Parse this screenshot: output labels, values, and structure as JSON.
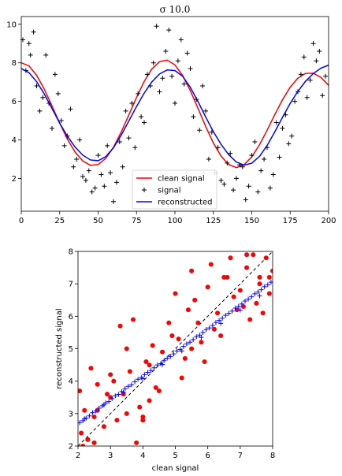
{
  "colors": {
    "clean": "#ff0000",
    "signal": "#000000",
    "reconstructed": "#0000ff",
    "scatter_clean_vs_signal": "#ff0000",
    "scatter_clean_vs_reconstructed": "#0000ff",
    "identity_line": "#000000"
  },
  "chart_data": [
    {
      "type": "line",
      "title": "σ  10.0",
      "xlabel": "",
      "ylabel": "",
      "xlim": [
        0,
        200
      ],
      "ylim": [
        0.3,
        10.4
      ],
      "xticks": [
        0,
        25,
        50,
        75,
        100,
        125,
        150,
        175,
        200
      ],
      "yticks": [
        2,
        4,
        6,
        8,
        10
      ],
      "grid": false,
      "legend_position": "lower-center",
      "series": [
        {
          "name": "clean signal",
          "kind": "line",
          "color": "#ff0000",
          "x": [
            0,
            5,
            10,
            15,
            20,
            25,
            30,
            35,
            40,
            45,
            50,
            55,
            60,
            65,
            70,
            75,
            80,
            85,
            90,
            95,
            100,
            105,
            110,
            115,
            120,
            125,
            130,
            135,
            140,
            145,
            150,
            155,
            160,
            165,
            170,
            175,
            180,
            185,
            190,
            195,
            200
          ],
          "y": [
            8.0,
            7.84,
            7.35,
            6.63,
            5.76,
            4.87,
            4.04,
            3.37,
            2.91,
            2.68,
            2.72,
            3.04,
            3.62,
            4.4,
            5.29,
            6.2,
            7.03,
            7.68,
            8.06,
            8.14,
            7.89,
            7.34,
            6.56,
            5.64,
            4.7,
            3.84,
            3.16,
            2.72,
            2.56,
            2.71,
            3.12,
            3.74,
            4.5,
            5.31,
            6.08,
            6.73,
            7.2,
            7.45,
            7.46,
            7.24,
            6.83
          ]
        },
        {
          "name": "signal",
          "kind": "scatter",
          "color": "#000000",
          "x": [
            1,
            3,
            5,
            6,
            8,
            10,
            12,
            14,
            16,
            18,
            20,
            22,
            24,
            26,
            28,
            30,
            32,
            34,
            36,
            38,
            40,
            42,
            44,
            46,
            48,
            50,
            52,
            54,
            56,
            58,
            60,
            62,
            64,
            66,
            68,
            70,
            72,
            74,
            76,
            78,
            80,
            82,
            84,
            86,
            88,
            90,
            92,
            94,
            96,
            98,
            100,
            102,
            104,
            106,
            108,
            110,
            112,
            114,
            116,
            118,
            120,
            122,
            124,
            126,
            128,
            130,
            132,
            134,
            136,
            138,
            140,
            142,
            144,
            146,
            148,
            150,
            152,
            154,
            156,
            158,
            160,
            162,
            164,
            166,
            168,
            170,
            172,
            174,
            176,
            178,
            180,
            182,
            184,
            186,
            188,
            190,
            192,
            194,
            196,
            198
          ],
          "y": [
            9.2,
            7.6,
            9.0,
            8.4,
            9.6,
            6.8,
            5.5,
            6.2,
            8.4,
            5.9,
            4.6,
            7.4,
            6.4,
            5.0,
            3.7,
            4.2,
            5.6,
            2.6,
            3.0,
            4.0,
            2.1,
            1.9,
            2.4,
            1.3,
            1.5,
            3.2,
            2.2,
            1.6,
            3.7,
            2.3,
            0.8,
            1.8,
            3.9,
            2.6,
            5.5,
            4.1,
            5.9,
            3.6,
            6.4,
            5.2,
            4.9,
            7.4,
            6.8,
            8.0,
            9.9,
            6.5,
            7.2,
            8.6,
            9.7,
            7.3,
            5.9,
            8.1,
            9.2,
            6.9,
            8.5,
            7.7,
            5.2,
            6.1,
            4.5,
            6.8,
            5.5,
            3.0,
            4.4,
            2.3,
            3.6,
            1.9,
            1.7,
            2.8,
            3.3,
            1.4,
            2.0,
            2.7,
            2.6,
            0.9,
            1.6,
            3.2,
            3.9,
            1.3,
            2.4,
            3.0,
            3.6,
            1.5,
            2.2,
            4.9,
            3.1,
            4.6,
            5.3,
            3.8,
            4.2,
            6.0,
            6.5,
            7.4,
            8.3,
            6.2,
            7.1,
            9.0,
            8.1,
            8.6,
            6.3,
            7.3
          ]
        },
        {
          "name": "reconstructed",
          "kind": "line",
          "color": "#0000ff",
          "x": [
            0,
            5,
            10,
            15,
            20,
            25,
            30,
            35,
            40,
            45,
            50,
            55,
            60,
            65,
            70,
            75,
            80,
            85,
            90,
            95,
            100,
            105,
            110,
            115,
            120,
            125,
            130,
            135,
            140,
            145,
            150,
            155,
            160,
            165,
            170,
            175,
            180,
            185,
            190,
            195,
            200
          ],
          "y": [
            7.7,
            7.49,
            7.02,
            6.38,
            5.63,
            4.87,
            4.19,
            3.63,
            3.21,
            2.96,
            2.92,
            3.13,
            3.59,
            4.24,
            4.98,
            5.73,
            6.43,
            7.01,
            7.42,
            7.63,
            7.6,
            7.3,
            6.73,
            5.99,
            5.19,
            4.43,
            3.77,
            3.23,
            2.85,
            2.69,
            2.79,
            3.14,
            3.71,
            4.42,
            5.17,
            5.89,
            6.52,
            7.04,
            7.44,
            7.72,
            7.88
          ]
        }
      ]
    },
    {
      "type": "scatter",
      "title": "",
      "xlabel": "clean signal",
      "ylabel": "reconstructed signal",
      "xlim": [
        2,
        8
      ],
      "ylim": [
        2,
        8
      ],
      "xticks": [
        2,
        3,
        4,
        5,
        6,
        7,
        8
      ],
      "yticks": [
        2,
        3,
        4,
        5,
        6,
        7,
        8
      ],
      "grid": false,
      "series": [
        {
          "kind": "scatter-dot",
          "color": "#ff0000",
          "x": [
            2.05,
            2.1,
            2.2,
            2.3,
            2.4,
            2.5,
            2.6,
            2.8,
            3.0,
            3.1,
            3.2,
            3.3,
            3.4,
            3.5,
            3.6,
            3.8,
            3.9,
            4.0,
            4.1,
            4.2,
            4.3,
            4.5,
            4.6,
            4.8,
            5.0,
            5.1,
            5.2,
            5.4,
            5.5,
            5.6,
            5.7,
            5.9,
            6.0,
            6.1,
            6.3,
            6.4,
            6.6,
            6.7,
            6.8,
            7.0,
            7.1,
            7.2,
            7.3,
            7.4,
            7.5,
            7.6,
            7.7,
            7.8,
            7.9,
            8.0,
            2.15,
            2.6,
            3.0,
            3.5,
            4.2,
            4.9,
            5.5,
            6.2,
            6.9,
            7.6,
            2.3,
            2.9,
            3.7,
            4.4,
            5.3,
            6.5,
            7.2,
            2.5,
            4.0,
            5.8,
            7.9
          ],
          "y": [
            3.7,
            2.4,
            3.1,
            2.2,
            4.4,
            2.9,
            3.9,
            2.6,
            3.5,
            4.0,
            2.8,
            5.7,
            3.6,
            5.0,
            4.3,
            2.1,
            3.2,
            2.8,
            4.6,
            3.4,
            5.1,
            3.7,
            4.9,
            5.8,
            6.7,
            5.3,
            4.1,
            6.2,
            5.0,
            6.5,
            5.8,
            4.6,
            6.9,
            7.6,
            6.1,
            5.4,
            7.2,
            7.8,
            6.6,
            6.8,
            6.3,
            7.5,
            5.9,
            7.9,
            6.4,
            7.0,
            6.1,
            7.8,
            6.7,
            7.4,
            2.0,
            3.1,
            4.2,
            3.0,
            4.5,
            5.4,
            7.4,
            5.6,
            6.2,
            7.2,
            2.2,
            3.6,
            5.9,
            3.8,
            4.7,
            7.2,
            7.9,
            2.1,
            2.9,
            5.2,
            7.2
          ]
        },
        {
          "kind": "scatter-plus",
          "color": "#0000ff",
          "x": [
            2.05,
            2.15,
            2.25,
            2.35,
            2.45,
            2.55,
            2.65,
            2.75,
            2.85,
            2.95,
            3.05,
            3.15,
            3.25,
            3.35,
            3.45,
            3.55,
            3.65,
            3.75,
            3.85,
            3.95,
            4.05,
            4.15,
            4.25,
            4.35,
            4.45,
            4.55,
            4.65,
            4.75,
            4.85,
            4.95,
            5.05,
            5.15,
            5.25,
            5.35,
            5.45,
            5.55,
            5.65,
            5.75,
            5.85,
            5.95,
            6.05,
            6.15,
            6.25,
            6.35,
            6.45,
            6.55,
            6.65,
            6.75,
            6.85,
            6.95,
            7.05,
            7.15,
            7.25,
            7.35,
            7.45,
            7.55,
            7.65,
            7.75,
            7.85,
            7.95,
            2.2,
            2.8,
            3.4,
            4.0,
            4.6,
            5.2,
            5.8,
            6.4,
            7.0,
            7.6
          ],
          "y": [
            2.72,
            2.78,
            2.86,
            2.93,
            3.03,
            3.08,
            3.17,
            3.24,
            3.33,
            3.37,
            3.46,
            3.55,
            3.59,
            3.68,
            3.77,
            3.84,
            3.89,
            3.98,
            4.06,
            4.11,
            4.2,
            4.27,
            4.33,
            4.41,
            4.5,
            4.54,
            4.63,
            4.71,
            4.76,
            4.84,
            4.93,
            4.98,
            5.07,
            5.15,
            5.2,
            5.28,
            5.37,
            5.42,
            5.5,
            5.59,
            5.64,
            5.72,
            5.81,
            5.87,
            5.94,
            6.03,
            6.09,
            6.16,
            6.25,
            6.31,
            6.38,
            6.47,
            6.53,
            6.6,
            6.69,
            6.75,
            6.82,
            6.91,
            6.97,
            7.05,
            2.84,
            3.27,
            3.66,
            4.08,
            4.51,
            4.93,
            5.35,
            5.78,
            6.19,
            6.63
          ]
        }
      ]
    }
  ]
}
